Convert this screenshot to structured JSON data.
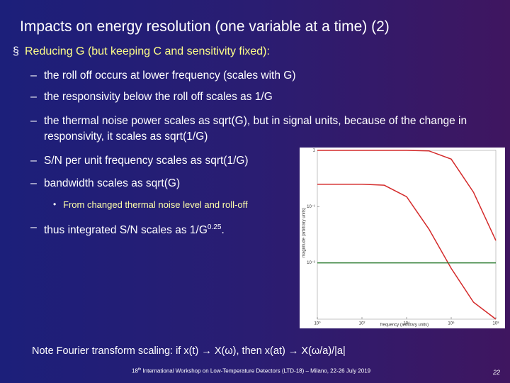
{
  "slide": {
    "title": "Impacts on energy resolution (one variable at a time) (2)",
    "bullet": "Reducing G (but keeping C and sensitivity fixed):",
    "subbullets": [
      "the roll off occurs at lower frequency (scales with G)",
      "the responsivity below the roll off scales as 1/G",
      "the thermal noise power scales as sqrt(G), but in signal units, because of the change in responsivity, it scales as sqrt(1/G)",
      "S/N per unit frequency scales as sqrt(1/G)",
      "bandwidth scales as sqrt(G)"
    ],
    "subsubbullet": "From changed thermal noise level and roll-off",
    "last": {
      "text": "thus integrated S/N scales as 1/G",
      "sup": "0.25",
      "end": "."
    },
    "note": "Note Fourier transform scaling: if x(t) → X(ω), then x(at) → X(ω/a)/|a|",
    "footer": {
      "num": "18",
      "sup": "th",
      "text": " International Workshop on Low-Temperature Detectors (LTD-18) – Milano, 22-26 July 2019"
    },
    "page": "22"
  },
  "chart_data": {
    "type": "line",
    "x_label": "frequency (arbitrary units)",
    "y_label": "magnitude (arbitrary units)",
    "log_x": true,
    "log_y": true,
    "x": [
      1,
      10,
      100,
      1000,
      10000,
      100000,
      1000000,
      10000000,
      100000000
    ],
    "series": [
      {
        "color": "#d42a2a",
        "values": [
          1,
          1,
          1,
          1,
          1,
          0.98,
          0.7,
          0.18,
          0.025
        ]
      },
      {
        "color": "#d42a2a",
        "values": [
          0.25,
          0.25,
          0.25,
          0.24,
          0.15,
          0.04,
          0.008,
          0.002,
          0.001
        ]
      },
      {
        "color": "#2e7d32",
        "values": [
          0.01,
          0.01,
          0.01,
          0.01,
          0.01,
          0.01,
          0.01,
          0.01,
          0.01
        ]
      }
    ],
    "xlim": [
      1,
      100000000
    ],
    "ylim": [
      0.001,
      1
    ],
    "xticks": [
      {
        "value": 1,
        "label": "10⁰"
      },
      {
        "value": 100,
        "label": "10²"
      },
      {
        "value": 10000,
        "label": "10⁴"
      },
      {
        "value": 1000000,
        "label": "10⁶"
      },
      {
        "value": 100000000,
        "label": "10⁸"
      }
    ],
    "yticks": [
      1,
      {
        "value": 0.1,
        "label": "10⁻¹"
      },
      {
        "value": 0.01,
        "label": "10⁻²"
      }
    ]
  }
}
